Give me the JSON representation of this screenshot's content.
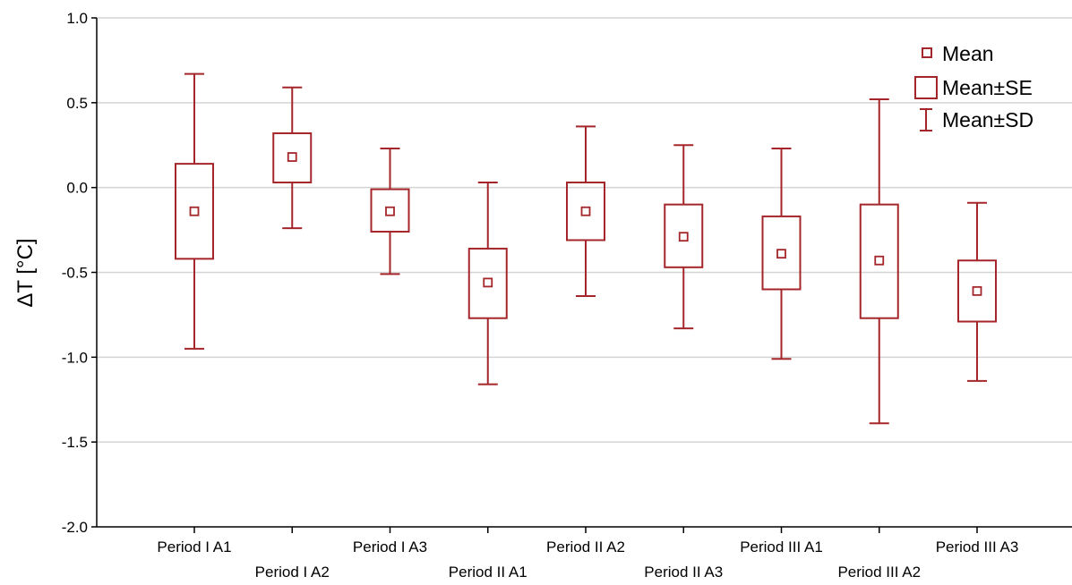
{
  "chart_data": {
    "type": "box",
    "ylabel": "ΔT [°C]",
    "xlabel": "",
    "ylim": [
      -2.0,
      1.0
    ],
    "yticks": [
      "1.0",
      "0.5",
      "0.0",
      "-0.5",
      "-1.0",
      "-1.5",
      "-2.0"
    ],
    "ytick_values": [
      1.0,
      0.5,
      0.0,
      -0.5,
      -1.0,
      -1.5,
      -2.0
    ],
    "grid": true,
    "legend_position": "top-right",
    "legend": [
      {
        "symbol": "mean",
        "label": "Mean"
      },
      {
        "symbol": "se",
        "label": "Mean±SE"
      },
      {
        "symbol": "sd",
        "label": "Mean±SD"
      }
    ],
    "categories": [
      "Period I A1",
      "Period I A2",
      "Period I A3",
      "Period II A1",
      "Period II A2",
      "Period II A3",
      "Period III A1",
      "Period III A2",
      "Period III A3"
    ],
    "series": [
      {
        "mean": -0.14,
        "se_low": -0.42,
        "se_high": 0.14,
        "sd_low": -0.95,
        "sd_high": 0.67
      },
      {
        "mean": 0.18,
        "se_low": 0.03,
        "se_high": 0.32,
        "sd_low": -0.24,
        "sd_high": 0.59
      },
      {
        "mean": -0.14,
        "se_low": -0.26,
        "se_high": -0.01,
        "sd_low": -0.51,
        "sd_high": 0.23
      },
      {
        "mean": -0.56,
        "se_low": -0.77,
        "se_high": -0.36,
        "sd_low": -1.16,
        "sd_high": 0.03
      },
      {
        "mean": -0.14,
        "se_low": -0.31,
        "se_high": 0.03,
        "sd_low": -0.64,
        "sd_high": 0.36
      },
      {
        "mean": -0.29,
        "se_low": -0.47,
        "se_high": -0.1,
        "sd_low": -0.83,
        "sd_high": 0.25
      },
      {
        "mean": -0.39,
        "se_low": -0.6,
        "se_high": -0.17,
        "sd_low": -1.01,
        "sd_high": 0.23
      },
      {
        "mean": -0.43,
        "se_low": -0.77,
        "se_high": -0.1,
        "sd_low": -1.39,
        "sd_high": 0.52
      },
      {
        "mean": -0.61,
        "se_low": -0.79,
        "se_high": -0.43,
        "sd_low": -1.14,
        "sd_high": -0.09
      }
    ],
    "color": "#a5262a"
  }
}
